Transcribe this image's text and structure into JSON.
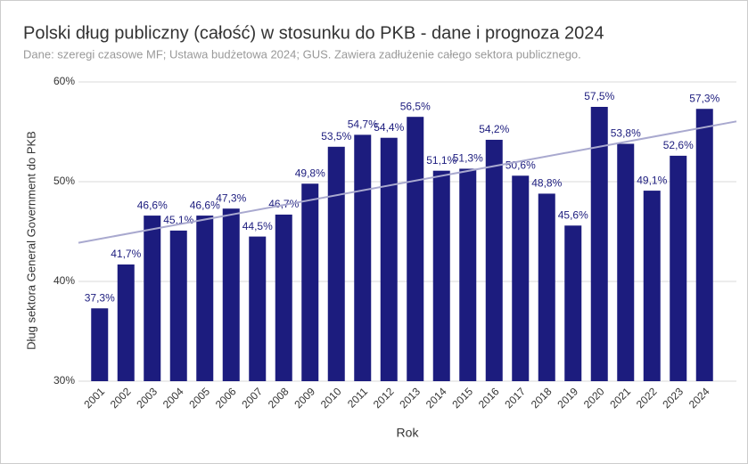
{
  "chart_data": {
    "type": "bar",
    "title": "Polski dług publiczny (całość) w stosunku do PKB - dane i prognoza 2024",
    "subtitle": "Dane: szeregi czasowe MF; Ustawa budżetowa 2024; GUS. Zawiera zadłużenie całego sektora publicznego.",
    "x_label": "Rok",
    "y_label": "Dług sektora General Government do PKB",
    "categories": [
      "2001",
      "2002",
      "2003",
      "2004",
      "2005",
      "2006",
      "2007",
      "2008",
      "2009",
      "2010",
      "2011",
      "2012",
      "2013",
      "2014",
      "2015",
      "2016",
      "2017",
      "2018",
      "2019",
      "2020",
      "2021",
      "2022",
      "2023",
      "2024"
    ],
    "values": [
      37.3,
      41.7,
      46.6,
      45.1,
      46.6,
      47.3,
      44.5,
      46.7,
      49.8,
      53.5,
      54.7,
      54.4,
      56.5,
      51.1,
      51.3,
      54.2,
      50.6,
      48.8,
      45.6,
      57.5,
      53.8,
      49.1,
      52.6,
      57.3
    ],
    "value_labels": [
      "37,3%",
      "41,7%",
      "46,6%",
      "45,1%",
      "46,6%",
      "47,3%",
      "44,5%",
      "46,7%",
      "49,8%",
      "53,5%",
      "54,7%",
      "54,4%",
      "56,5%",
      "51,1%",
      "51,3%",
      "54,2%",
      "50,6%",
      "48,8%",
      "45,6%",
      "57,5%",
      "53,8%",
      "49,1%",
      "52,6%",
      "57,3%"
    ],
    "color": "#1c1c7e",
    "trendline": true,
    "ylim": [
      30,
      60
    ],
    "yticks": [
      {
        "value": 30,
        "label": "30%"
      },
      {
        "value": 40,
        "label": "40%"
      },
      {
        "value": 50,
        "label": "50%"
      },
      {
        "value": 60,
        "label": "60%"
      }
    ],
    "grid": true
  }
}
